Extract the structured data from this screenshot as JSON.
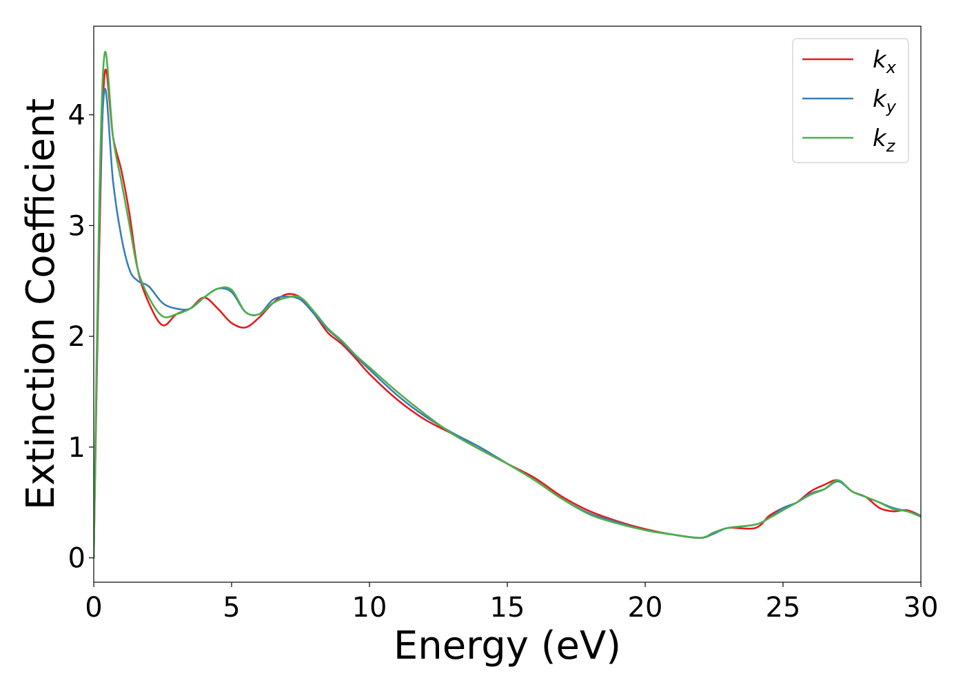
{
  "chart_data": {
    "type": "line",
    "title": "",
    "xlabel": "Energy (eV)",
    "ylabel": "Extinction Coefficient",
    "xlim": [
      0,
      30
    ],
    "ylim": [
      -0.22,
      4.8
    ],
    "xticks": [
      0,
      5,
      10,
      15,
      20,
      25,
      30
    ],
    "yticks": [
      0,
      1,
      2,
      3,
      4
    ],
    "grid": false,
    "legend_position": "top-right",
    "x": [
      0,
      0.2,
      0.4,
      0.7,
      1.0,
      1.3,
      1.6,
      2.0,
      2.5,
      3.0,
      3.5,
      4.0,
      4.5,
      5.0,
      5.5,
      6.0,
      6.5,
      7.0,
      7.5,
      8.0,
      8.5,
      9.0,
      9.5,
      10.0,
      11.0,
      12.0,
      13.0,
      14.0,
      15.0,
      16.0,
      17.0,
      18.0,
      19.0,
      20.0,
      21.0,
      22.0,
      22.5,
      23.0,
      24.0,
      24.5,
      25.0,
      25.5,
      26.0,
      26.5,
      27.0,
      27.5,
      28.0,
      28.5,
      29.0,
      29.5,
      30.0
    ],
    "series": [
      {
        "name": "k",
        "subscript": "x",
        "color": "#e41a1c",
        "values": [
          0.0,
          2.8,
          4.38,
          3.8,
          3.5,
          3.1,
          2.6,
          2.3,
          2.1,
          2.2,
          2.25,
          2.35,
          2.25,
          2.12,
          2.08,
          2.17,
          2.3,
          2.38,
          2.35,
          2.2,
          2.03,
          1.93,
          1.8,
          1.66,
          1.43,
          1.25,
          1.12,
          0.98,
          0.85,
          0.72,
          0.55,
          0.42,
          0.33,
          0.26,
          0.21,
          0.18,
          0.22,
          0.27,
          0.27,
          0.38,
          0.45,
          0.5,
          0.6,
          0.66,
          0.7,
          0.6,
          0.55,
          0.45,
          0.42,
          0.43,
          0.38
        ]
      },
      {
        "name": "k",
        "subscript": "y",
        "color": "#377eb8",
        "values": [
          0.0,
          3.0,
          4.23,
          3.4,
          2.9,
          2.6,
          2.5,
          2.45,
          2.3,
          2.25,
          2.25,
          2.35,
          2.43,
          2.4,
          2.22,
          2.2,
          2.33,
          2.36,
          2.33,
          2.2,
          2.06,
          1.95,
          1.82,
          1.7,
          1.47,
          1.28,
          1.13,
          1.0,
          0.85,
          0.7,
          0.53,
          0.4,
          0.32,
          0.25,
          0.21,
          0.18,
          0.22,
          0.27,
          0.3,
          0.36,
          0.45,
          0.5,
          0.58,
          0.62,
          0.69,
          0.6,
          0.55,
          0.5,
          0.45,
          0.42,
          0.38
        ]
      },
      {
        "name": "k",
        "subscript": "z",
        "color": "#4daf4a",
        "values": [
          0.0,
          3.2,
          4.56,
          3.8,
          3.4,
          3.0,
          2.6,
          2.35,
          2.18,
          2.2,
          2.25,
          2.35,
          2.43,
          2.42,
          2.22,
          2.2,
          2.3,
          2.35,
          2.35,
          2.22,
          2.07,
          1.96,
          1.83,
          1.72,
          1.5,
          1.3,
          1.12,
          0.98,
          0.85,
          0.7,
          0.53,
          0.39,
          0.31,
          0.25,
          0.21,
          0.18,
          0.23,
          0.27,
          0.3,
          0.36,
          0.43,
          0.5,
          0.57,
          0.62,
          0.7,
          0.6,
          0.55,
          0.5,
          0.44,
          0.42,
          0.37
        ]
      }
    ]
  }
}
